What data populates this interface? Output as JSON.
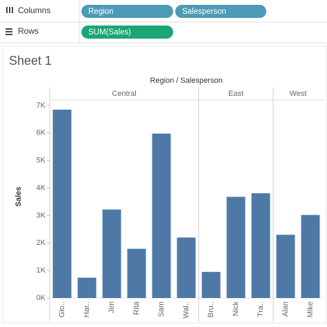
{
  "shelves": {
    "columns": {
      "label": "Columns",
      "pills": [
        "Region",
        "Salesperson"
      ]
    },
    "rows": {
      "label": "Rows",
      "pills": [
        "SUM(Sales)"
      ]
    }
  },
  "sheet_title": "Sheet 1",
  "chart_data": {
    "type": "bar",
    "title": "Region / Salesperson",
    "y_label": "Sales",
    "color": "#4e79a7",
    "groups": [
      {
        "name": "Central",
        "categories": [
          "Glo..",
          "Har..",
          "Jim",
          "Rita",
          "Sam",
          "Wal.."
        ],
        "values": [
          6850,
          740,
          3220,
          1790,
          5980,
          2200
        ]
      },
      {
        "name": "East",
        "categories": [
          "Bru..",
          "Nick",
          "Tra.."
        ],
        "values": [
          950,
          3680,
          3810
        ]
      },
      {
        "name": "West",
        "categories": [
          "Alan",
          "Mike"
        ],
        "values": [
          2300,
          3020
        ]
      }
    ],
    "ylim": [
      0,
      7200
    ],
    "yticks": [
      {
        "value": 0,
        "label": "0K"
      },
      {
        "value": 1000,
        "label": "1K"
      },
      {
        "value": 2000,
        "label": "2K"
      },
      {
        "value": 3000,
        "label": "3K"
      },
      {
        "value": 4000,
        "label": "4K"
      },
      {
        "value": 5000,
        "label": "5K"
      },
      {
        "value": 6000,
        "label": "6K"
      },
      {
        "value": 7000,
        "label": "7K"
      }
    ]
  }
}
